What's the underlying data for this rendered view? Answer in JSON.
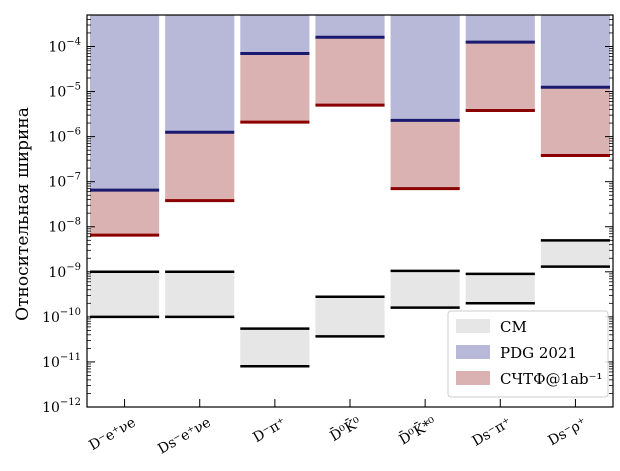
{
  "chart_data": {
    "type": "bar",
    "title": "",
    "ylabel": "Относительная ширина",
    "xlabel": "",
    "yscale": "log",
    "ylim": [
      1e-12,
      0.0005
    ],
    "ytick_labels": [
      {
        "value": 1e-12,
        "base": "10",
        "exp": "−12"
      },
      {
        "value": 1e-11,
        "base": "10",
        "exp": "−11"
      },
      {
        "value": 1e-10,
        "base": "10",
        "exp": "−10"
      },
      {
        "value": 1e-09,
        "base": "10",
        "exp": "−9"
      },
      {
        "value": 1e-08,
        "base": "10",
        "exp": "−8"
      },
      {
        "value": 1e-07,
        "base": "10",
        "exp": "−7"
      },
      {
        "value": 1e-06,
        "base": "10",
        "exp": "−6"
      },
      {
        "value": 1e-05,
        "base": "10",
        "exp": "−5"
      },
      {
        "value": 0.0001,
        "base": "10",
        "exp": "−4"
      }
    ],
    "categories": [
      "D⁻e⁺νe",
      "Ds⁻e⁺νe",
      "D⁻π⁺",
      "D̄⁰K̄⁰",
      "D̄⁰K̄*⁰",
      "Ds⁻π⁺",
      "Ds⁻ρ⁺"
    ],
    "series": [
      {
        "name": "СМ",
        "color": "#e6e6e6",
        "line_color": "#000000",
        "ranges": [
          [
            1e-10,
            1e-09
          ],
          [
            1e-10,
            1e-09
          ],
          [
            8e-12,
            5.5e-11
          ],
          [
            3.7e-11,
            2.8e-10
          ],
          [
            1.6e-10,
            1.05e-09
          ],
          [
            2e-10,
            9e-10
          ],
          [
            1.3e-09,
            5e-09
          ]
        ]
      },
      {
        "name": "PDG 2021",
        "color": "#b8b8d8",
        "line_color": "#1a1a6e",
        "ranges": [
          [
            6.5e-08,
            0.0005
          ],
          [
            1.25e-06,
            0.0005
          ],
          [
            7e-05,
            0.0005
          ],
          [
            0.00016,
            0.0005
          ],
          [
            2.3e-06,
            0.0005
          ],
          [
            0.000125,
            0.0005
          ],
          [
            1.25e-05,
            0.0005
          ]
        ]
      },
      {
        "name": "СЧТФ@1ab⁻¹",
        "color": "#dbb2b2",
        "line_color": "#8b0000",
        "ranges": [
          [
            6.5e-09,
            6.5e-08
          ],
          [
            3.8e-08,
            1.25e-06
          ],
          [
            2.1e-06,
            7e-05
          ],
          [
            5e-06,
            0.00016
          ],
          [
            7e-08,
            2.3e-06
          ],
          [
            3.8e-06,
            0.000125
          ],
          [
            3.8e-07,
            1.25e-05
          ]
        ]
      }
    ],
    "grid": false,
    "legend_position": "bottom-right"
  }
}
